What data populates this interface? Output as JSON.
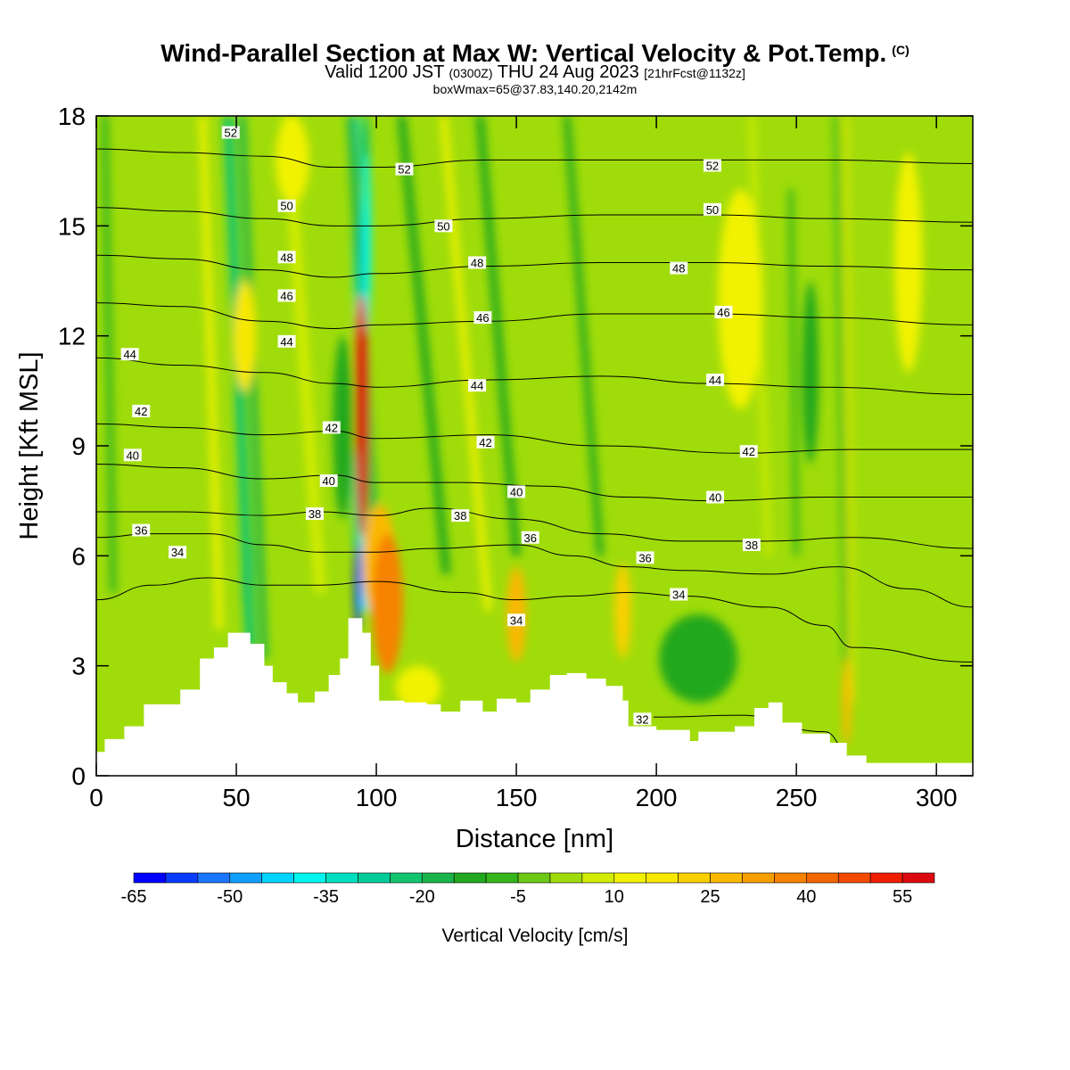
{
  "title": {
    "main": "Wind-Parallel Section at Max W: Vertical Velocity & Pot.Temp.",
    "copyright": "(C)",
    "valid_prefix": "Valid 1200 JST",
    "valid_zulu": "(0300Z)",
    "valid_date": "THU 24 Aug 2023",
    "forecast": "[21hrFcst@1132z]",
    "boxmax": "boxWmax=65@37.83,140.20,2142m"
  },
  "chart_data": {
    "type": "contour",
    "xlabel": "Distance [nm]",
    "ylabel": "Height [Kft MSL]",
    "xlim": [
      0,
      313
    ],
    "ylim": [
      0,
      18
    ],
    "x_ticks": [
      0,
      50,
      100,
      150,
      200,
      250,
      300
    ],
    "y_ticks": [
      0,
      3,
      6,
      9,
      12,
      15,
      18
    ],
    "colorbar": {
      "title": "Vertical Velocity [cm/s]",
      "ticks": [
        -65,
        -50,
        -35,
        -20,
        -5,
        10,
        25,
        40,
        55
      ],
      "min": -65,
      "max": 60,
      "step": 5,
      "colors": [
        "#0000ff",
        "#0a3cff",
        "#1a75ff",
        "#0fa0ff",
        "#00d5ff",
        "#00f5ee",
        "#00e0c0",
        "#00cc9a",
        "#12c46e",
        "#1ab44a",
        "#22a81e",
        "#36b51c",
        "#6cc814",
        "#a0dc0a",
        "#d2ec02",
        "#f2f200",
        "#f8e800",
        "#fad000",
        "#fab800",
        "#f99e00",
        "#f78200",
        "#f46800",
        "#f24a00",
        "#f01e00",
        "#dc0a10",
        "#c00028",
        "#a4003e",
        "#880050",
        "#6a0070",
        "#4e0090",
        "#3a008c"
      ]
    },
    "terrain_kft": [
      [
        0,
        0.65
      ],
      [
        3,
        1.0
      ],
      [
        10,
        1.35
      ],
      [
        17,
        1.95
      ],
      [
        30,
        2.35
      ],
      [
        37,
        3.2
      ],
      [
        42,
        3.5
      ],
      [
        47,
        3.9
      ],
      [
        55,
        3.6
      ],
      [
        60,
        3.0
      ],
      [
        63,
        2.55
      ],
      [
        68,
        2.25
      ],
      [
        72,
        2.0
      ],
      [
        78,
        2.3
      ],
      [
        83,
        2.75
      ],
      [
        87,
        3.2
      ],
      [
        90,
        4.3
      ],
      [
        93,
        4.3
      ],
      [
        95,
        3.9
      ],
      [
        98,
        3.0
      ],
      [
        101,
        2.05
      ],
      [
        110,
        2.0
      ],
      [
        118,
        1.95
      ],
      [
        123,
        1.75
      ],
      [
        130,
        2.05
      ],
      [
        138,
        1.75
      ],
      [
        143,
        2.1
      ],
      [
        150,
        2.0
      ],
      [
        155,
        2.35
      ],
      [
        162,
        2.75
      ],
      [
        168,
        2.8
      ],
      [
        175,
        2.65
      ],
      [
        182,
        2.45
      ],
      [
        188,
        2.05
      ],
      [
        190,
        1.35
      ],
      [
        200,
        1.25
      ],
      [
        212,
        0.95
      ],
      [
        215,
        1.2
      ],
      [
        228,
        1.35
      ],
      [
        235,
        1.85
      ],
      [
        240,
        2.0
      ],
      [
        245,
        1.45
      ],
      [
        252,
        1.15
      ],
      [
        262,
        0.9
      ],
      [
        268,
        0.55
      ],
      [
        275,
        0.35
      ],
      [
        313,
        0.35
      ]
    ],
    "theta_contours": [
      {
        "label": "32",
        "points": [
          [
            199,
            1.6
          ],
          [
            230,
            1.65
          ],
          [
            260,
            1.2
          ],
          [
            270,
            0.5
          ]
        ]
      },
      {
        "label": "34",
        "points": [
          [
            0,
            4.8
          ],
          [
            20,
            5.2
          ],
          [
            40,
            5.4
          ],
          [
            60,
            5.2
          ],
          [
            80,
            5.2
          ],
          [
            100,
            5.3
          ],
          [
            130,
            5.0
          ],
          [
            150,
            4.8
          ],
          [
            170,
            4.9
          ],
          [
            190,
            5.0
          ],
          [
            210,
            4.9
          ],
          [
            240,
            4.6
          ],
          [
            260,
            4.1
          ],
          [
            270,
            3.5
          ],
          [
            313,
            3.1
          ]
        ]
      },
      {
        "label": "36",
        "points": [
          [
            0,
            6.5
          ],
          [
            20,
            6.6
          ],
          [
            40,
            6.6
          ],
          [
            60,
            6.3
          ],
          [
            80,
            6.1
          ],
          [
            100,
            6.1
          ],
          [
            120,
            6.2
          ],
          [
            150,
            6.3
          ],
          [
            170,
            6.0
          ],
          [
            190,
            5.7
          ],
          [
            210,
            5.6
          ],
          [
            240,
            5.5
          ],
          [
            265,
            5.7
          ],
          [
            290,
            5.1
          ],
          [
            313,
            4.6
          ]
        ]
      },
      {
        "label": "38",
        "points": [
          [
            0,
            7.2
          ],
          [
            30,
            7.2
          ],
          [
            60,
            7.1
          ],
          [
            80,
            7.2
          ],
          [
            100,
            7.1
          ],
          [
            120,
            7.3
          ],
          [
            150,
            7.0
          ],
          [
            180,
            6.6
          ],
          [
            210,
            6.4
          ],
          [
            240,
            6.4
          ],
          [
            270,
            6.5
          ],
          [
            313,
            6.2
          ]
        ]
      },
      {
        "label": "40",
        "points": [
          [
            0,
            8.5
          ],
          [
            30,
            8.4
          ],
          [
            60,
            8.1
          ],
          [
            85,
            8.2
          ],
          [
            100,
            8.0
          ],
          [
            130,
            8.0
          ],
          [
            160,
            7.9
          ],
          [
            190,
            7.6
          ],
          [
            220,
            7.5
          ],
          [
            260,
            7.6
          ],
          [
            313,
            7.6
          ]
        ]
      },
      {
        "label": "42",
        "points": [
          [
            0,
            9.6
          ],
          [
            30,
            9.5
          ],
          [
            60,
            9.3
          ],
          [
            85,
            9.4
          ],
          [
            100,
            9.2
          ],
          [
            140,
            9.3
          ],
          [
            180,
            9.0
          ],
          [
            230,
            8.8
          ],
          [
            270,
            8.9
          ],
          [
            313,
            8.9
          ]
        ]
      },
      {
        "label": "44",
        "points": [
          [
            0,
            11.4
          ],
          [
            30,
            11.2
          ],
          [
            60,
            11.0
          ],
          [
            85,
            10.7
          ],
          [
            100,
            10.6
          ],
          [
            140,
            10.8
          ],
          [
            180,
            10.9
          ],
          [
            220,
            10.7
          ],
          [
            260,
            10.6
          ],
          [
            313,
            10.4
          ]
        ]
      },
      {
        "label": "46",
        "points": [
          [
            0,
            12.9
          ],
          [
            30,
            12.8
          ],
          [
            60,
            12.4
          ],
          [
            85,
            12.2
          ],
          [
            100,
            12.3
          ],
          [
            140,
            12.4
          ],
          [
            180,
            12.6
          ],
          [
            220,
            12.6
          ],
          [
            260,
            12.5
          ],
          [
            313,
            12.3
          ]
        ]
      },
      {
        "label": "48",
        "points": [
          [
            0,
            14.2
          ],
          [
            30,
            14.1
          ],
          [
            60,
            13.8
          ],
          [
            85,
            13.6
          ],
          [
            100,
            13.7
          ],
          [
            140,
            13.9
          ],
          [
            180,
            14.0
          ],
          [
            220,
            14.0
          ],
          [
            260,
            13.9
          ],
          [
            313,
            13.8
          ]
        ]
      },
      {
        "label": "50",
        "points": [
          [
            0,
            15.5
          ],
          [
            30,
            15.4
          ],
          [
            60,
            15.2
          ],
          [
            85,
            15.0
          ],
          [
            100,
            15.0
          ],
          [
            140,
            15.2
          ],
          [
            180,
            15.3
          ],
          [
            220,
            15.3
          ],
          [
            260,
            15.2
          ],
          [
            313,
            15.1
          ]
        ]
      },
      {
        "label": "52",
        "points": [
          [
            0,
            17.1
          ],
          [
            30,
            17.0
          ],
          [
            60,
            16.9
          ],
          [
            85,
            16.6
          ],
          [
            100,
            16.6
          ],
          [
            140,
            16.8
          ],
          [
            180,
            16.8
          ],
          [
            220,
            16.8
          ],
          [
            260,
            16.8
          ],
          [
            313,
            16.7
          ]
        ]
      }
    ],
    "contour_labels": [
      {
        "text": "52",
        "x": 48,
        "y": 17.55
      },
      {
        "text": "52",
        "x": 110,
        "y": 16.55
      },
      {
        "text": "52",
        "x": 220,
        "y": 16.65
      },
      {
        "text": "50",
        "x": 68,
        "y": 15.55
      },
      {
        "text": "50",
        "x": 124,
        "y": 15.0
      },
      {
        "text": "50",
        "x": 220,
        "y": 15.45
      },
      {
        "text": "48",
        "x": 68,
        "y": 14.15
      },
      {
        "text": "48",
        "x": 136,
        "y": 14.0
      },
      {
        "text": "48",
        "x": 208,
        "y": 13.85
      },
      {
        "text": "46",
        "x": 68,
        "y": 13.1
      },
      {
        "text": "46",
        "x": 138,
        "y": 12.5
      },
      {
        "text": "46",
        "x": 224,
        "y": 12.65
      },
      {
        "text": "44",
        "x": 12,
        "y": 11.5
      },
      {
        "text": "44",
        "x": 68,
        "y": 11.85
      },
      {
        "text": "44",
        "x": 136,
        "y": 10.65
      },
      {
        "text": "44",
        "x": 221,
        "y": 10.8
      },
      {
        "text": "42",
        "x": 16,
        "y": 9.95
      },
      {
        "text": "42",
        "x": 84,
        "y": 9.5
      },
      {
        "text": "42",
        "x": 139,
        "y": 9.1
      },
      {
        "text": "42",
        "x": 233,
        "y": 8.85
      },
      {
        "text": "40",
        "x": 13,
        "y": 8.75
      },
      {
        "text": "40",
        "x": 83,
        "y": 8.05
      },
      {
        "text": "40",
        "x": 150,
        "y": 7.75
      },
      {
        "text": "40",
        "x": 221,
        "y": 7.6
      },
      {
        "text": "38",
        "x": 78,
        "y": 7.15
      },
      {
        "text": "38",
        "x": 130,
        "y": 7.1
      },
      {
        "text": "38",
        "x": 234,
        "y": 6.3
      },
      {
        "text": "36",
        "x": 16,
        "y": 6.7
      },
      {
        "text": "36",
        "x": 155,
        "y": 6.5
      },
      {
        "text": "36",
        "x": 196,
        "y": 5.95
      },
      {
        "text": "34",
        "x": 29,
        "y": 6.1
      },
      {
        "text": "34",
        "x": 208,
        "y": 4.95
      },
      {
        "text": "34",
        "x": 150,
        "y": 4.25
      },
      {
        "text": "32",
        "x": 195,
        "y": 1.55
      }
    ],
    "w_features": [
      {
        "x": 95,
        "y": 9.8,
        "rx": 2.2,
        "ry": 3.3,
        "w": 58
      },
      {
        "x": 94,
        "y": 11.5,
        "rx": 1.5,
        "ry": 1.6,
        "w": 42
      },
      {
        "x": 104,
        "y": 4.7,
        "rx": 5.5,
        "ry": 1.9,
        "w": 38
      },
      {
        "x": 101,
        "y": 5.8,
        "rx": 6,
        "ry": 1.6,
        "w": 28
      },
      {
        "x": 93.5,
        "y": 5.2,
        "rx": 1.2,
        "ry": 1.2,
        "w": -62
      },
      {
        "x": 96.5,
        "y": 14.5,
        "rx": 1.6,
        "ry": 2.5,
        "w": -38
      },
      {
        "x": 96,
        "y": 17.0,
        "rx": 1.6,
        "ry": 1.1,
        "w": -25
      },
      {
        "x": 93,
        "y": 7.5,
        "rx": 1.3,
        "ry": 1.5,
        "w": -30
      },
      {
        "x": 150,
        "y": 4.4,
        "rx": 3.5,
        "ry": 1.3,
        "w": 25
      },
      {
        "x": 188,
        "y": 4.5,
        "rx": 3.0,
        "ry": 1.3,
        "w": 20
      },
      {
        "x": 54,
        "y": 5.5,
        "rx": 2.0,
        "ry": 1.2,
        "w": -22
      },
      {
        "x": 88,
        "y": 9.5,
        "rx": 3.5,
        "ry": 2.5,
        "w": -14
      },
      {
        "x": 53,
        "y": 12.0,
        "rx": 4,
        "ry": 1.5,
        "w": 15
      },
      {
        "x": 115,
        "y": 2.4,
        "rx": 8,
        "ry": 0.6,
        "w": 12
      },
      {
        "x": 268,
        "y": 2.0,
        "rx": 1.5,
        "ry": 1.2,
        "w": 25
      },
      {
        "x": 215,
        "y": 3.2,
        "rx": 14,
        "ry": 1.2,
        "w": -12
      },
      {
        "x": 255,
        "y": 11.0,
        "rx": 3,
        "ry": 2.5,
        "w": -12
      },
      {
        "x": 290,
        "y": 14.0,
        "rx": 5,
        "ry": 3,
        "w": 10
      },
      {
        "x": 230,
        "y": 13.0,
        "rx": 8,
        "ry": 3,
        "w": 10
      },
      {
        "x": 70,
        "y": 16.8,
        "rx": 6,
        "ry": 1.2,
        "w": 12
      }
    ],
    "w_bands": [
      {
        "xbot": 55,
        "ybot": 3.5,
        "xtop": 47,
        "ytop": 18,
        "width": 3.5,
        "w": -25
      },
      {
        "xbot": 60,
        "ybot": 3.2,
        "xtop": 52,
        "ytop": 18,
        "width": 2.5,
        "w": -16
      },
      {
        "xbot": 96,
        "ybot": 4.5,
        "xtop": 92,
        "ytop": 18,
        "width": 2.6,
        "w": -40
      },
      {
        "xbot": 100,
        "ybot": 5.5,
        "xtop": 91,
        "ytop": 18,
        "width": 3.0,
        "w": -18
      },
      {
        "xbot": 125,
        "ybot": 5.5,
        "xtop": 109,
        "ytop": 18,
        "width": 3.2,
        "w": -12
      },
      {
        "xbot": 150,
        "ybot": 6.0,
        "xtop": 137,
        "ytop": 18,
        "width": 3.0,
        "w": -14
      },
      {
        "xbot": 180,
        "ybot": 6.0,
        "xtop": 168,
        "ytop": 18,
        "width": 2.5,
        "w": -12
      },
      {
        "xbot": 268,
        "ybot": 1.0,
        "xtop": 264,
        "ytop": 18,
        "width": 1.5,
        "w": -10
      },
      {
        "xbot": 270,
        "ybot": 2.0,
        "xtop": 268,
        "ytop": 18,
        "width": 1.0,
        "w": 15
      },
      {
        "xbot": 44,
        "ybot": 4.0,
        "xtop": 38,
        "ytop": 18,
        "width": 2.5,
        "w": 12
      },
      {
        "xbot": 80,
        "ybot": 5.0,
        "xtop": 68,
        "ytop": 18,
        "width": 4.0,
        "w": 8
      },
      {
        "xbot": 140,
        "ybot": 4.5,
        "xtop": 124,
        "ytop": 18,
        "width": 2.5,
        "w": 10
      },
      {
        "xbot": 6,
        "ybot": 5.0,
        "xtop": 3,
        "ytop": 18,
        "width": 2.5,
        "w": -10
      },
      {
        "xbot": 240,
        "ybot": 6.0,
        "xtop": 234,
        "ytop": 18,
        "width": 2.0,
        "w": 8
      },
      {
        "xbot": 250,
        "ybot": 6.0,
        "xtop": 248,
        "ytop": 16,
        "width": 2.0,
        "w": -8
      }
    ]
  }
}
